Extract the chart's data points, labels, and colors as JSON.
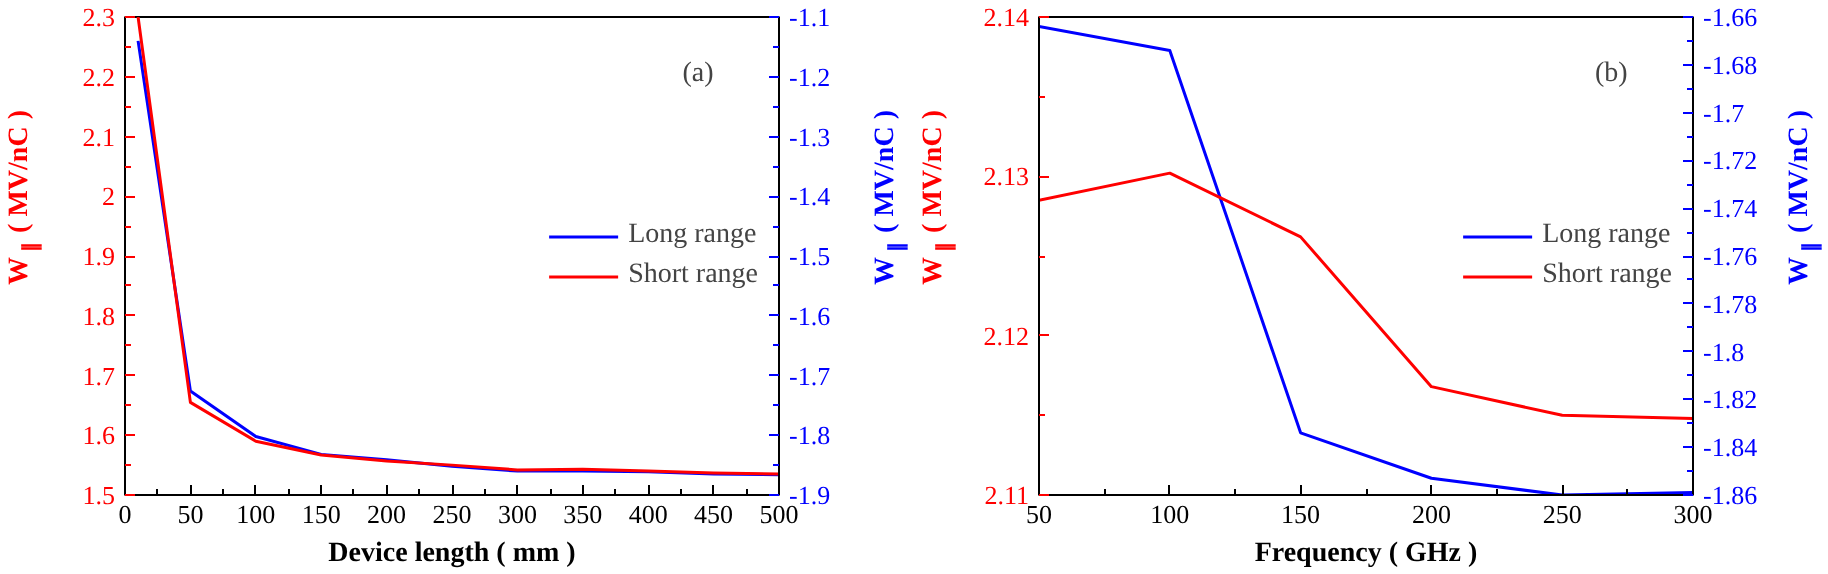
{
  "chart_data": [
    {
      "type": "line",
      "xlabel": "Device length ( mm )",
      "ylabel": "W$_{∥}$ ( MV/nC )",
      "y2label": "W$_{∥}$ ( MV/nC )",
      "annotations": [
        "(a)"
      ],
      "x": [
        10,
        50,
        100,
        150,
        200,
        250,
        300,
        350,
        400,
        450,
        500
      ],
      "series": [
        {
          "name": "Long range",
          "color": "#0000ff",
          "axis": "y2",
          "values": [
            -1.14,
            -1.726,
            -1.802,
            -1.832,
            -1.841,
            -1.852,
            -1.86,
            -1.86,
            -1.861,
            -1.865,
            -1.866
          ]
        },
        {
          "name": "Short range",
          "color": "#ff0000",
          "values": [
            2.3,
            1.655,
            1.59,
            1.567,
            1.557,
            1.55,
            1.542,
            1.543,
            1.54,
            1.537,
            1.535
          ]
        }
      ],
      "xlim": [
        0,
        500
      ],
      "xticks": [
        0,
        50,
        100,
        150,
        200,
        250,
        300,
        350,
        400,
        450,
        500
      ],
      "ylim": [
        1.5,
        2.3
      ],
      "yticks": [
        1.5,
        1.6,
        1.7,
        1.8,
        1.9,
        2,
        2.1,
        2.2,
        2.3
      ],
      "y2lim": [
        -1.9,
        -1.1
      ],
      "y2ticks": [
        -1.9,
        -1.8,
        -1.7,
        -1.6,
        -1.5,
        -1.4,
        -1.3,
        -1.2,
        -1.1
      ],
      "grid": false,
      "legend": "right"
    },
    {
      "type": "line",
      "xlabel": "Frequency ( GHz )",
      "ylabel": "W$_{∥}$ ( MV/nC )",
      "y2label": "W$_{∥}$ ( MV/nC )",
      "annotations": [
        "(b)"
      ],
      "x": [
        50,
        100,
        150,
        200,
        250,
        300
      ],
      "series": [
        {
          "name": "Long range",
          "color": "#0000ff",
          "axis": "y2",
          "values": [
            -1.664,
            -1.674,
            -1.834,
            -1.853,
            -1.86,
            -1.859
          ]
        },
        {
          "name": "Short range",
          "color": "#ff0000",
          "values": [
            2.1285,
            2.1302,
            2.1262,
            2.1168,
            2.115,
            2.1148
          ]
        }
      ],
      "xlim": [
        50,
        300
      ],
      "xticks": [
        50,
        100,
        150,
        200,
        250,
        300
      ],
      "ylim": [
        2.11,
        2.14
      ],
      "yticks": [
        2.11,
        2.12,
        2.13,
        2.14
      ],
      "y2lim": [
        -1.86,
        -1.66
      ],
      "y2ticks": [
        -1.86,
        -1.84,
        -1.82,
        -1.8,
        -1.78,
        -1.76,
        -1.74,
        -1.72,
        -1.7,
        -1.68,
        -1.66
      ],
      "grid": false,
      "legend": "right"
    }
  ]
}
